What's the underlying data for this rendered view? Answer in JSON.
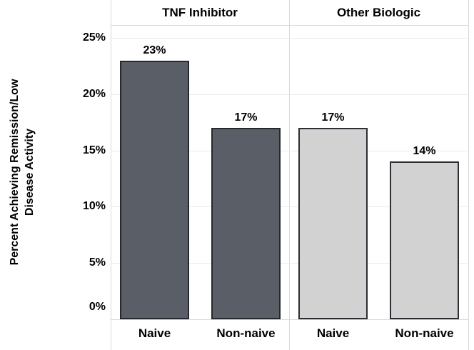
{
  "chart_data": {
    "type": "bar",
    "title": "",
    "ylabel": "Percent Achieving Remission/Low Disease Activity",
    "ylabel_lines": [
      "Percent Achieving Remission/Low",
      "Disease Activity"
    ],
    "xlabel": "",
    "ylim": [
      0,
      25
    ],
    "grid": true,
    "legend": "none",
    "y_axis": {
      "ticks": [
        {
          "value": 0,
          "label": "0%"
        },
        {
          "value": 5,
          "label": "5%"
        },
        {
          "value": 10,
          "label": "10%"
        },
        {
          "value": 15,
          "label": "15%"
        },
        {
          "value": 20,
          "label": "20%"
        },
        {
          "value": 25,
          "label": "25%"
        }
      ]
    },
    "panels": [
      {
        "label": "TNF Inhibitor",
        "bar_color": "#5a5f67",
        "bar_border": "#26292c",
        "bars": [
          {
            "category": "Naive",
            "value": 23,
            "value_label": "23%"
          },
          {
            "category": "Non-naive",
            "value": 17,
            "value_label": "17%"
          }
        ]
      },
      {
        "label": "Other Biologic",
        "bar_color": "#d2d2d2",
        "bar_border": "#2b2e33",
        "bars": [
          {
            "category": "Naive",
            "value": 17,
            "value_label": "17%"
          },
          {
            "category": "Non-naive",
            "value": 14,
            "value_label": "14%"
          }
        ]
      }
    ],
    "colors": {
      "gridline": "#ebebeb",
      "frame": "#d8d8d8",
      "text": "#000000",
      "background": "#ffffff"
    }
  }
}
